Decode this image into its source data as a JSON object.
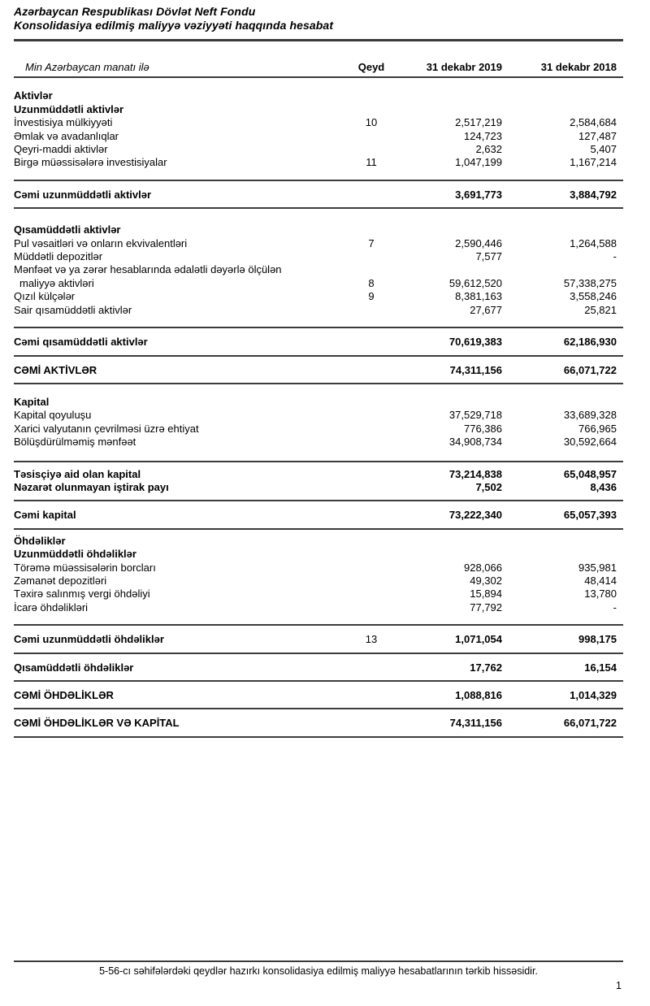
{
  "colors": {
    "text": "#000000",
    "rule": "#3c3c3c",
    "background": "#ffffff"
  },
  "header": {
    "title_line1": "Azərbaycan Respublikası Dövlət Neft Fondu",
    "title_line2": "Konsolidasiya edilmiş maliyyə vəziyyəti haqqında hesabat"
  },
  "table": {
    "columns": {
      "caption": "Min Azərbaycan manatı ilə",
      "note": "Qeyd",
      "col2019": "31 dekabr 2019",
      "col2018": "31 dekabr 2018"
    },
    "rows": [
      {
        "type": "gap",
        "h": 14
      },
      {
        "type": "heading",
        "label": "Aktivlər"
      },
      {
        "type": "heading",
        "label": "Uzunmüddətli aktivlər"
      },
      {
        "type": "item",
        "label": "İnvestisiya mülkiyyəti",
        "note": "10",
        "v2019": "2,517,219",
        "v2018": "2,584,684"
      },
      {
        "type": "item",
        "label": "Əmlak və avadanlıqlar",
        "v2019": "124,723",
        "v2018": "127,487"
      },
      {
        "type": "item",
        "label": "Qeyri-maddi aktivlər",
        "v2019": "2,632",
        "v2018": "5,407"
      },
      {
        "type": "item",
        "label": "Birgə müəssisələrə investisiyalar",
        "note": "11",
        "v2019": "1,047,199",
        "v2018": "1,167,214"
      },
      {
        "type": "gap",
        "h": 12
      },
      {
        "type": "rule"
      },
      {
        "type": "total",
        "label": "Cəmi uzunmüddətli aktivlər",
        "v2019": "3,691,773",
        "v2018": "3,884,792"
      },
      {
        "type": "rule"
      },
      {
        "type": "gap",
        "h": 18
      },
      {
        "type": "heading",
        "label": "Qısamüddətli aktivlər"
      },
      {
        "type": "item",
        "label": "Pul vəsaitləri və onların ekvivalentləri",
        "note": "7",
        "v2019": "2,590,446",
        "v2018": "1,264,588"
      },
      {
        "type": "item",
        "label": "Müddətli depozitlər",
        "v2019": "7,577",
        "v2018": "-"
      },
      {
        "type": "item",
        "label": "Mənfəət və ya zərər hesablarında ədalətli dəyərlə ölçülən",
        "label2": "maliyyə aktivləri",
        "note": "8",
        "v2019": "59,612,520",
        "v2018": "57,338,275"
      },
      {
        "type": "item",
        "label": "Qızıl külçələr",
        "note": "9",
        "v2019": "8,381,163",
        "v2018": "3,558,246"
      },
      {
        "type": "item",
        "label": "Sair qısamüddətli aktivlər",
        "v2019": "27,677",
        "v2018": "25,821"
      },
      {
        "type": "gap",
        "h": 12
      },
      {
        "type": "rule"
      },
      {
        "type": "total",
        "label": "Cəmi qısamüddətli aktivlər",
        "v2019": "70,619,383",
        "v2018": "62,186,930"
      },
      {
        "type": "rule"
      },
      {
        "type": "total",
        "label": "CƏMİ AKTİVLƏR",
        "v2019": "74,311,156",
        "v2018": "66,071,722"
      },
      {
        "type": "rule"
      },
      {
        "type": "gap",
        "h": 14
      },
      {
        "type": "heading",
        "label": "Kapital"
      },
      {
        "type": "item",
        "label": "Kapital qoyuluşu",
        "v2019": "37,529,718",
        "v2018": "33,689,328"
      },
      {
        "type": "item",
        "label": "Xarici valyutanın çevrilməsi üzrə ehtiyat",
        "v2019": "776,386",
        "v2018": "766,965"
      },
      {
        "type": "item",
        "label": "Bölüşdürülməmiş mənfəət",
        "v2019": "34,908,734",
        "v2018": "30,592,664"
      },
      {
        "type": "gap",
        "h": 14
      },
      {
        "type": "rule"
      },
      {
        "type": "bold-item",
        "pad": "top",
        "label": "Təsisçiyə aid olan kapital",
        "v2019": "73,214,838",
        "v2018": "65,048,957"
      },
      {
        "type": "bold-item",
        "pad": "bottom",
        "label": "Nəzarət olunmayan iştirak payı",
        "v2019": "7,502",
        "v2018": "8,436"
      },
      {
        "type": "rule"
      },
      {
        "type": "total",
        "label": "Cəmi kapital",
        "v2019": "73,222,340",
        "v2018": "65,057,393"
      },
      {
        "type": "rule"
      },
      {
        "type": "gap",
        "h": 6
      },
      {
        "type": "heading",
        "label": "Öhdəliklər"
      },
      {
        "type": "heading",
        "label": "Uzunmüddətli öhdəliklər"
      },
      {
        "type": "item",
        "label": "Törəmə müəssisələrin borcları",
        "v2019": "928,066",
        "v2018": "935,981"
      },
      {
        "type": "item",
        "label": "Zəmanət depozitləri",
        "v2019": "49,302",
        "v2018": "48,414"
      },
      {
        "type": "item",
        "label": "Təxirə salınmış vergi öhdəliyi",
        "v2019": "15,894",
        "v2018": "13,780"
      },
      {
        "type": "item",
        "label": "İcarə öhdəlikləri",
        "v2019": "77,792",
        "v2018": "-"
      },
      {
        "type": "gap",
        "h": 12
      },
      {
        "type": "rule"
      },
      {
        "type": "total",
        "label": "Cəmi uzunmüddətli öhdəliklər",
        "note": "13",
        "v2019": "1,071,054",
        "v2018": "998,175"
      },
      {
        "type": "rule"
      },
      {
        "type": "total",
        "label": "Qısamüddətli öhdəliklər",
        "v2019": "17,762",
        "v2018": "16,154"
      },
      {
        "type": "rule"
      },
      {
        "type": "total",
        "label": "CƏMİ ÖHDƏLİKLƏR",
        "v2019": "1,088,816",
        "v2018": "1,014,329"
      },
      {
        "type": "rule"
      },
      {
        "type": "total",
        "label": "CƏMİ ÖHDƏLİKLƏR VƏ KAPİTAL",
        "v2019": "74,311,156",
        "v2018": "66,071,722"
      },
      {
        "type": "rule"
      }
    ]
  },
  "footer": {
    "note": "5-56-cı səhifələrdəki qeydlər hazırkı konsolidasiya edilmiş maliyyə hesabatlarının tərkib hissəsidir.",
    "page_number": "1"
  }
}
